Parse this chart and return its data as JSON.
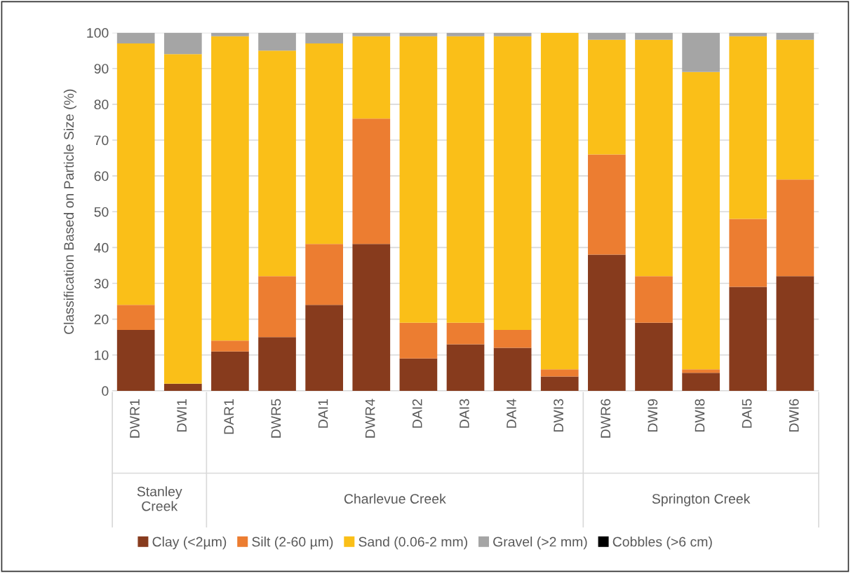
{
  "chart_data": {
    "type": "bar",
    "stacked": true,
    "ylabel": "Classification Based on Particle Size (%)",
    "categories": [
      "DWR1",
      "DWI1",
      "DAR1",
      "DWR5",
      "DAI1",
      "DWR4",
      "DAI2",
      "DAI3",
      "DAI4",
      "DWI3",
      "DWR6",
      "DWI9",
      "DWI8",
      "DAI5",
      "DWI6"
    ],
    "series": [
      {
        "name": "Clay (<2µm)",
        "color": "#873b1d",
        "values": [
          17,
          2,
          11,
          15,
          24,
          41,
          9,
          13,
          12,
          4,
          38,
          19,
          5,
          29,
          32
        ]
      },
      {
        "name": "Silt (2-60 µm)",
        "color": "#ec7d31",
        "values": [
          7,
          0,
          3,
          17,
          17,
          35,
          10,
          6,
          5,
          2,
          28,
          13,
          1,
          19,
          27
        ]
      },
      {
        "name": "Sand (0.06-2 mm)",
        "color": "#fabf18",
        "values": [
          73,
          92,
          85,
          63,
          56,
          23,
          80,
          80,
          82,
          94,
          32,
          66,
          83,
          51,
          39
        ]
      },
      {
        "name": "Gravel (>2 mm)",
        "color": "#a5a5a5",
        "values": [
          3,
          6,
          1,
          5,
          3,
          1,
          1,
          1,
          1,
          0,
          2,
          2,
          11,
          1,
          2
        ]
      },
      {
        "name": "Cobbles (>6 cm)",
        "color": "#000000",
        "values": [
          0,
          0,
          0,
          0,
          0,
          0,
          0,
          0,
          0,
          0,
          0,
          0,
          0,
          0,
          0
        ]
      }
    ],
    "ylim": [
      0,
      100
    ],
    "yticks": [
      0,
      10,
      20,
      30,
      40,
      50,
      60,
      70,
      80,
      90,
      100
    ],
    "grid": "y",
    "legend": "bottom",
    "annotations": [
      "Stanley\nCreek",
      "Charlevue Creek",
      "Springton Creek"
    ]
  }
}
